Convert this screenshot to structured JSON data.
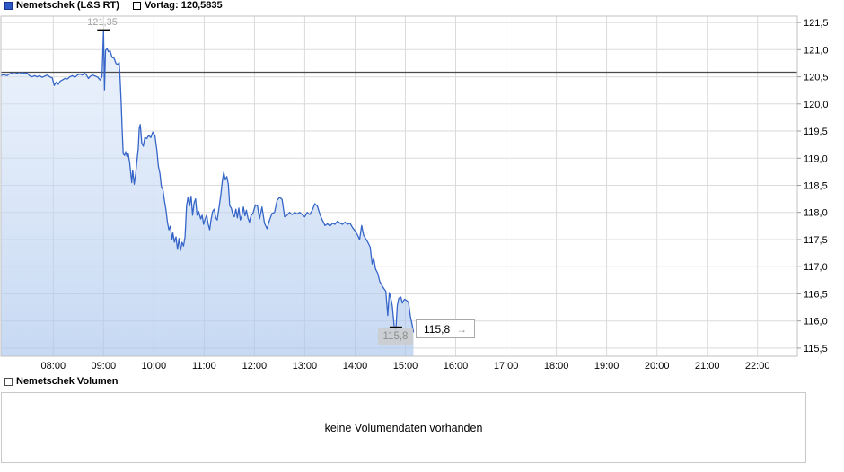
{
  "legend": {
    "series_label": "Nemetschek (L&S RT)",
    "previous_close_label": "Vortag: 120,5835"
  },
  "annotations": {
    "high_label": "121,35",
    "low_label": "115,8",
    "last_price_label": "115,8",
    "arrow_glyph": "→"
  },
  "volume_panel": {
    "legend_label": "Nemetschek Volumen",
    "empty_message": "keine Volumendaten vorhanden"
  },
  "colors": {
    "line": "#3565c8",
    "legend_swatch": "#2c59c5",
    "previous_close_line": "#4a4a4a",
    "grid": "#dbdbdb",
    "plot_border": "#c2c2c2",
    "fill_top": "rgba(220,232,250,0.5)",
    "fill_bottom": "rgba(168,196,236,0.65)",
    "marker": "#000000",
    "axis_text": "#000000",
    "tick_stub": "#9a9a9a"
  },
  "chart_data": {
    "type": "area",
    "title": "Nemetschek (L&S RT) Intraday",
    "previous_close": 120.5835,
    "day_high": 121.35,
    "day_high_time_hours": 9.0,
    "day_low": 115.8,
    "day_low_time_hours": 14.81,
    "last_price": 115.8,
    "x_range_hours": [
      6.96,
      22.79
    ],
    "y_range": [
      115.35,
      121.617
    ],
    "grid": true,
    "legend_position": "top-left",
    "x_ticks": [
      {
        "hour": 8,
        "label": "08:00"
      },
      {
        "hour": 9,
        "label": "09:00"
      },
      {
        "hour": 10,
        "label": "10:00"
      },
      {
        "hour": 11,
        "label": "11:00"
      },
      {
        "hour": 12,
        "label": "12:00"
      },
      {
        "hour": 13,
        "label": "13:00"
      },
      {
        "hour": 14,
        "label": "14:00"
      },
      {
        "hour": 15,
        "label": "15:00"
      },
      {
        "hour": 16,
        "label": "16:00"
      },
      {
        "hour": 17,
        "label": "17:00"
      },
      {
        "hour": 18,
        "label": "18:00"
      },
      {
        "hour": 19,
        "label": "19:00"
      },
      {
        "hour": 20,
        "label": "20:00"
      },
      {
        "hour": 21,
        "label": "21:00"
      },
      {
        "hour": 22,
        "label": "22:00"
      }
    ],
    "y_ticks": [
      {
        "value": 121.5,
        "label": "121,5"
      },
      {
        "value": 121.0,
        "label": "121,0"
      },
      {
        "value": 120.5,
        "label": "120,5"
      },
      {
        "value": 120.0,
        "label": "120,0"
      },
      {
        "value": 119.5,
        "label": "119,5"
      },
      {
        "value": 119.0,
        "label": "119,0"
      },
      {
        "value": 118.5,
        "label": "118,5"
      },
      {
        "value": 118.0,
        "label": "118,0"
      },
      {
        "value": 117.5,
        "label": "117,5"
      },
      {
        "value": 117.0,
        "label": "117,0"
      },
      {
        "value": 116.5,
        "label": "116,5"
      },
      {
        "value": 116.0,
        "label": "116,0"
      },
      {
        "value": 115.5,
        "label": "115,5"
      }
    ],
    "series": [
      {
        "name": "Nemetschek (L&S RT)",
        "points": [
          [
            6.96,
            120.52
          ],
          [
            7.02,
            120.54
          ],
          [
            7.08,
            120.52
          ],
          [
            7.13,
            120.55
          ],
          [
            7.18,
            120.57
          ],
          [
            7.23,
            120.55
          ],
          [
            7.28,
            120.57
          ],
          [
            7.33,
            120.55
          ],
          [
            7.38,
            120.58
          ],
          [
            7.43,
            120.56
          ],
          [
            7.48,
            120.57
          ],
          [
            7.53,
            120.52
          ],
          [
            7.58,
            120.5
          ],
          [
            7.63,
            120.52
          ],
          [
            7.68,
            120.5
          ],
          [
            7.73,
            120.52
          ],
          [
            7.78,
            120.49
          ],
          [
            7.83,
            120.51
          ],
          [
            7.88,
            120.53
          ],
          [
            7.93,
            120.5
          ],
          [
            7.98,
            120.48
          ],
          [
            8.02,
            120.34
          ],
          [
            8.06,
            120.4
          ],
          [
            8.1,
            120.36
          ],
          [
            8.14,
            120.42
          ],
          [
            8.18,
            120.44
          ],
          [
            8.23,
            120.47
          ],
          [
            8.28,
            120.46
          ],
          [
            8.33,
            120.5
          ],
          [
            8.38,
            120.52
          ],
          [
            8.43,
            120.49
          ],
          [
            8.48,
            120.53
          ],
          [
            8.53,
            120.55
          ],
          [
            8.58,
            120.53
          ],
          [
            8.62,
            120.57
          ],
          [
            8.66,
            120.53
          ],
          [
            8.7,
            120.47
          ],
          [
            8.74,
            120.51
          ],
          [
            8.79,
            120.53
          ],
          [
            8.84,
            120.51
          ],
          [
            8.89,
            120.49
          ],
          [
            8.93,
            120.44
          ],
          [
            8.97,
            120.5
          ],
          [
            9.0,
            121.35
          ],
          [
            9.02,
            120.26
          ],
          [
            9.04,
            120.98
          ],
          [
            9.07,
            121.02
          ],
          [
            9.1,
            120.96
          ],
          [
            9.13,
            120.98
          ],
          [
            9.17,
            120.86
          ],
          [
            9.21,
            120.84
          ],
          [
            9.25,
            120.74
          ],
          [
            9.29,
            120.73
          ],
          [
            9.31,
            120.77
          ],
          [
            9.33,
            120.45
          ],
          [
            9.35,
            120.05
          ],
          [
            9.37,
            119.55
          ],
          [
            9.39,
            119.08
          ],
          [
            9.42,
            119.05
          ],
          [
            9.44,
            119.12
          ],
          [
            9.47,
            119.02
          ],
          [
            9.49,
            119.08
          ],
          [
            9.52,
            118.92
          ],
          [
            9.54,
            118.72
          ],
          [
            9.56,
            118.55
          ],
          [
            9.58,
            118.78
          ],
          [
            9.61,
            118.52
          ],
          [
            9.64,
            118.72
          ],
          [
            9.66,
            118.92
          ],
          [
            9.69,
            119.18
          ],
          [
            9.71,
            119.55
          ],
          [
            9.73,
            119.62
          ],
          [
            9.76,
            119.28
          ],
          [
            9.79,
            119.22
          ],
          [
            9.82,
            119.38
          ],
          [
            9.86,
            119.36
          ],
          [
            9.9,
            119.42
          ],
          [
            9.94,
            119.38
          ],
          [
            9.98,
            119.48
          ],
          [
            10.02,
            119.42
          ],
          [
            10.06,
            119.15
          ],
          [
            10.09,
            118.85
          ],
          [
            10.12,
            118.72
          ],
          [
            10.15,
            118.48
          ],
          [
            10.18,
            118.42
          ],
          [
            10.21,
            118.22
          ],
          [
            10.24,
            118.05
          ],
          [
            10.27,
            117.82
          ],
          [
            10.3,
            117.68
          ],
          [
            10.33,
            117.75
          ],
          [
            10.36,
            117.5
          ],
          [
            10.38,
            117.62
          ],
          [
            10.41,
            117.45
          ],
          [
            10.44,
            117.55
          ],
          [
            10.47,
            117.32
          ],
          [
            10.5,
            117.52
          ],
          [
            10.53,
            117.3
          ],
          [
            10.56,
            117.45
          ],
          [
            10.59,
            117.38
          ],
          [
            10.62,
            117.55
          ],
          [
            10.65,
            118.12
          ],
          [
            10.68,
            118.28
          ],
          [
            10.71,
            118.12
          ],
          [
            10.74,
            118.3
          ],
          [
            10.77,
            117.95
          ],
          [
            10.8,
            118.18
          ],
          [
            10.83,
            118.25
          ],
          [
            10.86,
            117.95
          ],
          [
            10.89,
            118.02
          ],
          [
            10.93,
            117.88
          ],
          [
            10.96,
            117.95
          ],
          [
            10.99,
            117.78
          ],
          [
            11.02,
            117.88
          ],
          [
            11.05,
            117.95
          ],
          [
            11.08,
            117.78
          ],
          [
            11.11,
            117.68
          ],
          [
            11.14,
            117.88
          ],
          [
            11.17,
            118.02
          ],
          [
            11.2,
            118.06
          ],
          [
            11.23,
            117.9
          ],
          [
            11.26,
            117.86
          ],
          [
            11.3,
            118.12
          ],
          [
            11.33,
            118.32
          ],
          [
            11.36,
            118.56
          ],
          [
            11.39,
            118.74
          ],
          [
            11.42,
            118.6
          ],
          [
            11.45,
            118.66
          ],
          [
            11.48,
            118.52
          ],
          [
            11.51,
            118.12
          ],
          [
            11.54,
            118.08
          ],
          [
            11.57,
            117.96
          ],
          [
            11.6,
            117.92
          ],
          [
            11.63,
            118.06
          ],
          [
            11.66,
            117.9
          ],
          [
            11.69,
            118.08
          ],
          [
            11.72,
            117.86
          ],
          [
            11.75,
            117.94
          ],
          [
            11.78,
            118.1
          ],
          [
            11.81,
            117.94
          ],
          [
            11.84,
            118.04
          ],
          [
            11.87,
            117.9
          ],
          [
            11.9,
            117.82
          ],
          [
            11.93,
            117.94
          ],
          [
            11.97,
            117.98
          ],
          [
            12.02,
            118.14
          ],
          [
            12.06,
            118.12
          ],
          [
            12.1,
            117.88
          ],
          [
            12.15,
            118.1
          ],
          [
            12.2,
            117.8
          ],
          [
            12.25,
            117.7
          ],
          [
            12.3,
            117.86
          ],
          [
            12.35,
            117.98
          ],
          [
            12.4,
            118.0
          ],
          [
            12.45,
            118.22
          ],
          [
            12.5,
            118.28
          ],
          [
            12.55,
            118.24
          ],
          [
            12.6,
            117.92
          ],
          [
            12.65,
            117.95
          ],
          [
            12.7,
            118.0
          ],
          [
            12.75,
            117.96
          ],
          [
            12.8,
            118.0
          ],
          [
            12.85,
            117.97
          ],
          [
            12.9,
            118.0
          ],
          [
            12.95,
            117.96
          ],
          [
            13.0,
            117.92
          ],
          [
            13.05,
            118.0
          ],
          [
            13.1,
            117.96
          ],
          [
            13.15,
            118.04
          ],
          [
            13.2,
            118.16
          ],
          [
            13.25,
            118.12
          ],
          [
            13.3,
            117.97
          ],
          [
            13.35,
            117.86
          ],
          [
            13.4,
            117.76
          ],
          [
            13.45,
            117.79
          ],
          [
            13.5,
            117.75
          ],
          [
            13.55,
            117.8
          ],
          [
            13.6,
            117.78
          ],
          [
            13.65,
            117.84
          ],
          [
            13.7,
            117.8
          ],
          [
            13.75,
            117.78
          ],
          [
            13.8,
            117.82
          ],
          [
            13.85,
            117.78
          ],
          [
            13.9,
            117.8
          ],
          [
            13.95,
            117.72
          ],
          [
            14.0,
            117.66
          ],
          [
            14.05,
            117.58
          ],
          [
            14.09,
            117.5
          ],
          [
            14.13,
            117.76
          ],
          [
            14.17,
            117.58
          ],
          [
            14.21,
            117.52
          ],
          [
            14.26,
            117.44
          ],
          [
            14.3,
            117.36
          ],
          [
            14.34,
            117.05
          ],
          [
            14.37,
            117.15
          ],
          [
            14.41,
            116.95
          ],
          [
            14.45,
            116.88
          ],
          [
            14.49,
            116.73
          ],
          [
            14.53,
            116.66
          ],
          [
            14.57,
            116.6
          ],
          [
            14.61,
            116.55
          ],
          [
            14.65,
            116.1
          ],
          [
            14.68,
            116.52
          ],
          [
            14.71,
            116.42
          ],
          [
            14.74,
            116.28
          ],
          [
            14.78,
            115.88
          ],
          [
            14.81,
            115.84
          ],
          [
            14.84,
            116.28
          ],
          [
            14.87,
            116.42
          ],
          [
            14.91,
            116.44
          ],
          [
            14.94,
            116.33
          ],
          [
            14.98,
            116.4
          ],
          [
            15.02,
            116.38
          ],
          [
            15.06,
            116.35
          ],
          [
            15.1,
            116.08
          ],
          [
            15.13,
            115.95
          ],
          [
            15.16,
            115.8
          ]
        ]
      }
    ]
  }
}
